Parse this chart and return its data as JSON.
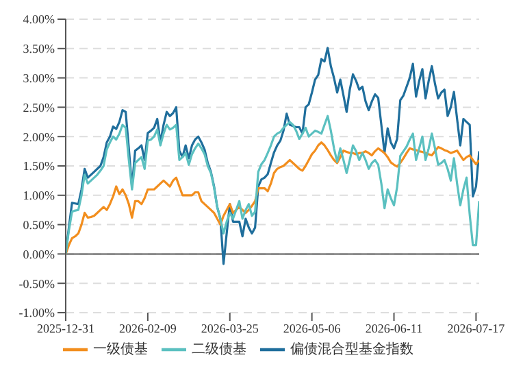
{
  "chart_data": {
    "type": "line",
    "categories": [
      "2025-12-31",
      null,
      null,
      null,
      null,
      null,
      null,
      null,
      null,
      null,
      null,
      null,
      null,
      null,
      null,
      null,
      null,
      null,
      null,
      null,
      null,
      null,
      null,
      null,
      null,
      null,
      "2026-02-09",
      null,
      null,
      null,
      null,
      null,
      null,
      null,
      null,
      null,
      null,
      null,
      null,
      null,
      null,
      null,
      null,
      null,
      null,
      null,
      null,
      null,
      null,
      null,
      null,
      null,
      "2026-03-25",
      null,
      null,
      null,
      null,
      null,
      null,
      null,
      null,
      null,
      null,
      null,
      null,
      null,
      null,
      null,
      null,
      null,
      null,
      null,
      null,
      null,
      null,
      null,
      null,
      null,
      "2026-05-06",
      null,
      null,
      null,
      null,
      null,
      null,
      null,
      null,
      null,
      null,
      null,
      null,
      null,
      null,
      null,
      null,
      null,
      null,
      null,
      null,
      null,
      null,
      null,
      null,
      null,
      "2026-06-11",
      null,
      null,
      null,
      null,
      null,
      null,
      null,
      null,
      null,
      null,
      null,
      null,
      null,
      null,
      null,
      null,
      null,
      null,
      null,
      null,
      null,
      null,
      null,
      null,
      null,
      "2026-07-17",
      null
    ],
    "series": [
      {
        "name": "偏债混合型基金指数",
        "color": "#1f6e9c",
        "values": [
          0,
          0.45,
          0.87,
          0.86,
          0.85,
          1.1,
          1.45,
          1.3,
          1.35,
          1.4,
          1.45,
          1.5,
          1.65,
          1.9,
          2.0,
          2.17,
          2.13,
          2.25,
          2.45,
          2.42,
          1.8,
          1.14,
          1.76,
          1.8,
          1.85,
          1.6,
          2.06,
          2.1,
          2.15,
          2.3,
          1.9,
          2.2,
          2.42,
          2.35,
          2.4,
          2.5,
          1.76,
          1.65,
          1.85,
          1.63,
          1.85,
          1.95,
          2.0,
          1.9,
          1.78,
          1.55,
          1.4,
          1.15,
          0.8,
          0.6,
          -0.17,
          0.35,
          0.85,
          0.55,
          0.55,
          0.55,
          0.3,
          0.6,
          0.45,
          0.35,
          0.45,
          1.15,
          1.27,
          1.3,
          1.36,
          1.55,
          1.73,
          1.85,
          1.93,
          2.1,
          2.39,
          2.2,
          2.18,
          2.16,
          2.16,
          2.05,
          2.5,
          2.55,
          2.75,
          2.97,
          3.05,
          3.32,
          3.28,
          3.51,
          3.2,
          3.0,
          2.75,
          2.97,
          2.7,
          2.42,
          2.8,
          3.06,
          2.95,
          2.8,
          2.85,
          2.6,
          2.45,
          2.6,
          2.72,
          2.66,
          2.2,
          1.72,
          2.14,
          1.9,
          1.8,
          1.96,
          2.62,
          2.7,
          2.85,
          3.0,
          3.24,
          2.68,
          2.95,
          3.15,
          2.65,
          2.95,
          3.2,
          2.9,
          2.65,
          2.75,
          2.8,
          2.35,
          2.5,
          2.76,
          2.3,
          1.85,
          2.3,
          2.25,
          2.2,
          0.98,
          1.15,
          1.75
        ]
      },
      {
        "name": "一级债基",
        "color": "#f28e1e",
        "values": [
          0,
          0.15,
          0.27,
          0.3,
          0.35,
          0.5,
          0.7,
          0.62,
          0.63,
          0.65,
          0.7,
          0.75,
          0.8,
          0.75,
          0.85,
          0.98,
          1.15,
          1.02,
          1.1,
          1.0,
          0.85,
          0.62,
          0.9,
          0.9,
          0.85,
          0.95,
          1.1,
          1.1,
          1.1,
          1.15,
          1.2,
          1.25,
          1.2,
          1.15,
          1.25,
          1.3,
          1.15,
          1.0,
          1.0,
          1.0,
          1.0,
          1.05,
          1.05,
          0.9,
          0.85,
          0.8,
          0.75,
          0.7,
          0.6,
          0.5,
          0.65,
          0.75,
          0.85,
          0.7,
          0.75,
          0.8,
          0.75,
          0.7,
          0.75,
          0.82,
          0.9,
          1.12,
          1.12,
          1.12,
          1.07,
          1.2,
          1.38,
          1.45,
          1.48,
          1.5,
          1.55,
          1.6,
          1.55,
          1.5,
          1.45,
          1.42,
          1.5,
          1.6,
          1.7,
          1.76,
          1.85,
          1.9,
          1.85,
          1.77,
          1.68,
          1.6,
          1.55,
          1.65,
          1.76,
          1.74,
          1.72,
          1.72,
          1.7,
          1.72,
          1.72,
          1.75,
          1.72,
          1.68,
          1.75,
          1.8,
          1.76,
          1.72,
          1.65,
          1.56,
          1.52,
          1.49,
          1.55,
          1.63,
          1.72,
          1.8,
          1.78,
          1.77,
          1.75,
          1.74,
          1.72,
          1.7,
          1.68,
          1.75,
          1.82,
          1.8,
          1.77,
          1.75,
          1.72,
          1.74,
          1.76,
          1.68,
          1.6,
          1.65,
          1.68,
          1.6,
          1.53,
          1.6
        ]
      },
      {
        "name": "二级债基",
        "color": "#5bc0c0",
        "values": [
          0,
          0.4,
          0.72,
          0.74,
          0.75,
          1.0,
          1.35,
          1.2,
          1.25,
          1.3,
          1.35,
          1.42,
          1.5,
          1.78,
          1.9,
          2.0,
          1.95,
          2.05,
          2.2,
          2.15,
          1.6,
          1.1,
          1.55,
          1.6,
          1.65,
          1.45,
          1.93,
          1.95,
          2.0,
          2.12,
          1.85,
          2.05,
          2.2,
          2.12,
          2.15,
          2.2,
          1.6,
          1.65,
          1.72,
          1.52,
          1.7,
          1.8,
          1.88,
          1.8,
          1.7,
          1.5,
          1.38,
          1.13,
          0.8,
          0.6,
          0.35,
          0.55,
          0.7,
          0.6,
          0.75,
          0.9,
          0.6,
          0.75,
          0.85,
          0.65,
          0.72,
          1.4,
          1.53,
          1.6,
          1.72,
          1.85,
          2.0,
          2.05,
          2.08,
          2.15,
          2.2,
          2.25,
          2.2,
          2.1,
          1.96,
          2.05,
          2.15,
          2.0,
          2.05,
          2.1,
          2.08,
          2.05,
          2.2,
          2.35,
          2.1,
          1.8,
          1.57,
          1.8,
          1.6,
          1.38,
          1.6,
          1.85,
          1.75,
          1.6,
          1.72,
          1.6,
          1.45,
          1.55,
          1.6,
          1.52,
          1.2,
          0.78,
          1.1,
          0.95,
          0.83,
          1.14,
          1.67,
          1.75,
          1.83,
          1.95,
          2.05,
          1.6,
          1.8,
          2.0,
          1.6,
          1.8,
          2.05,
          1.8,
          1.52,
          1.55,
          1.6,
          1.45,
          1.25,
          1.63,
          1.2,
          0.83,
          1.1,
          1.3,
          0.67,
          0.15,
          0.15,
          0.9
        ]
      }
    ],
    "ylim": [
      -1,
      4
    ],
    "yticks": [
      {
        "value": -1,
        "label": "-1.00%"
      },
      {
        "value": -0.5,
        "label": "-0.50%"
      },
      {
        "value": 0,
        "label": "0.00%"
      },
      {
        "value": 0.5,
        "label": "0.50%"
      },
      {
        "value": 1,
        "label": "1.00%"
      },
      {
        "value": 1.5,
        "label": "1.50%"
      },
      {
        "value": 2,
        "label": "2.00%"
      },
      {
        "value": 2.5,
        "label": "2.50%"
      },
      {
        "value": 3,
        "label": "3.00%"
      },
      {
        "value": 3.5,
        "label": "3.50%"
      },
      {
        "value": 4,
        "label": "4.00%"
      }
    ],
    "grid": "y",
    "legend": "bottom",
    "marker": "none",
    "line_style": "solid"
  }
}
